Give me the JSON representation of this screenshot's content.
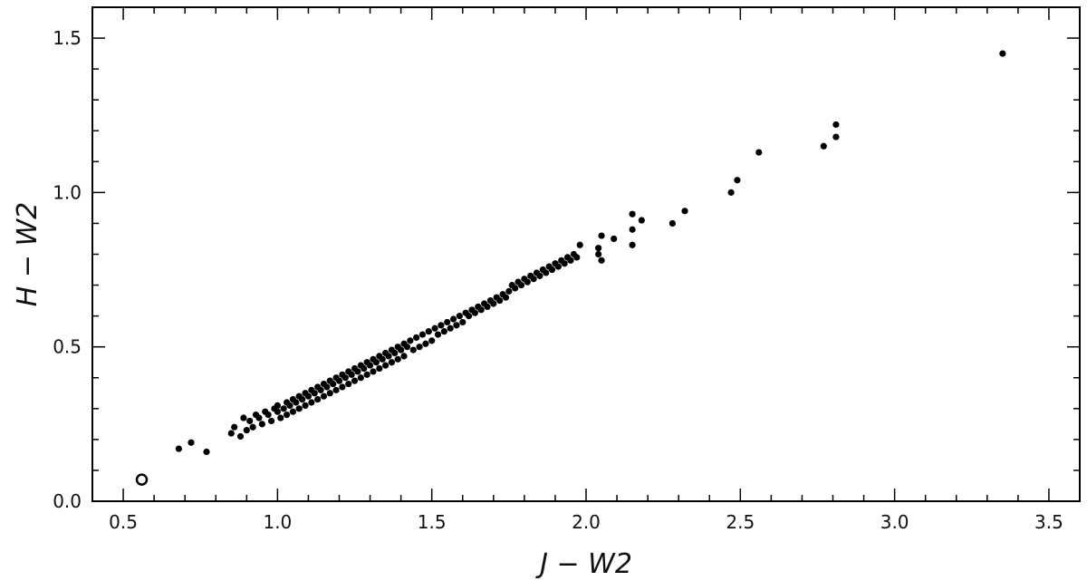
{
  "chart_data": {
    "type": "scatter",
    "xlabel": "J − W2",
    "ylabel": "H − W2",
    "xlim": [
      0.4,
      3.6
    ],
    "ylim": [
      0.0,
      1.6
    ],
    "xticks": [
      "0.5",
      "1.0",
      "1.5",
      "2.0",
      "2.5",
      "3.0",
      "3.5"
    ],
    "yticks": [
      "0.0",
      "0.5",
      "1.0",
      "1.5"
    ],
    "grid": false,
    "highlight_point": {
      "x": 0.56,
      "y": 0.07,
      "marker": "open-circle"
    },
    "series": [
      {
        "marker": "filled-circle",
        "color": "#000000",
        "points": [
          [
            0.68,
            0.17
          ],
          [
            0.72,
            0.19
          ],
          [
            0.77,
            0.16
          ],
          [
            0.85,
            0.22
          ],
          [
            0.86,
            0.24
          ],
          [
            0.88,
            0.21
          ],
          [
            0.89,
            0.27
          ],
          [
            0.9,
            0.23
          ],
          [
            0.91,
            0.26
          ],
          [
            0.92,
            0.24
          ],
          [
            0.93,
            0.28
          ],
          [
            0.94,
            0.27
          ],
          [
            0.95,
            0.25
          ],
          [
            0.96,
            0.29
          ],
          [
            0.97,
            0.28
          ],
          [
            0.98,
            0.26
          ],
          [
            0.99,
            0.3
          ],
          [
            1.0,
            0.29
          ],
          [
            1.0,
            0.31
          ],
          [
            1.01,
            0.27
          ],
          [
            1.02,
            0.3
          ],
          [
            1.03,
            0.32
          ],
          [
            1.03,
            0.28
          ],
          [
            1.04,
            0.31
          ],
          [
            1.05,
            0.33
          ],
          [
            1.05,
            0.29
          ],
          [
            1.06,
            0.32
          ],
          [
            1.07,
            0.34
          ],
          [
            1.07,
            0.3
          ],
          [
            1.08,
            0.33
          ],
          [
            1.09,
            0.35
          ],
          [
            1.09,
            0.31
          ],
          [
            1.1,
            0.34
          ],
          [
            1.11,
            0.36
          ],
          [
            1.11,
            0.32
          ],
          [
            1.12,
            0.35
          ],
          [
            1.13,
            0.37
          ],
          [
            1.13,
            0.33
          ],
          [
            1.14,
            0.36
          ],
          [
            1.15,
            0.38
          ],
          [
            1.15,
            0.34
          ],
          [
            1.16,
            0.37
          ],
          [
            1.17,
            0.39
          ],
          [
            1.17,
            0.35
          ],
          [
            1.18,
            0.38
          ],
          [
            1.19,
            0.4
          ],
          [
            1.19,
            0.36
          ],
          [
            1.2,
            0.39
          ],
          [
            1.21,
            0.41
          ],
          [
            1.21,
            0.37
          ],
          [
            1.22,
            0.4
          ],
          [
            1.23,
            0.42
          ],
          [
            1.23,
            0.38
          ],
          [
            1.24,
            0.41
          ],
          [
            1.25,
            0.43
          ],
          [
            1.25,
            0.39
          ],
          [
            1.26,
            0.42
          ],
          [
            1.27,
            0.44
          ],
          [
            1.27,
            0.4
          ],
          [
            1.28,
            0.43
          ],
          [
            1.29,
            0.45
          ],
          [
            1.29,
            0.41
          ],
          [
            1.3,
            0.44
          ],
          [
            1.31,
            0.46
          ],
          [
            1.31,
            0.42
          ],
          [
            1.32,
            0.45
          ],
          [
            1.33,
            0.47
          ],
          [
            1.33,
            0.43
          ],
          [
            1.34,
            0.46
          ],
          [
            1.35,
            0.48
          ],
          [
            1.35,
            0.44
          ],
          [
            1.36,
            0.47
          ],
          [
            1.37,
            0.49
          ],
          [
            1.37,
            0.45
          ],
          [
            1.38,
            0.48
          ],
          [
            1.39,
            0.5
          ],
          [
            1.39,
            0.46
          ],
          [
            1.4,
            0.49
          ],
          [
            1.41,
            0.51
          ],
          [
            1.41,
            0.47
          ],
          [
            1.42,
            0.5
          ],
          [
            1.43,
            0.52
          ],
          [
            1.44,
            0.49
          ],
          [
            1.45,
            0.53
          ],
          [
            1.46,
            0.5
          ],
          [
            1.47,
            0.54
          ],
          [
            1.48,
            0.51
          ],
          [
            1.49,
            0.55
          ],
          [
            1.5,
            0.52
          ],
          [
            1.51,
            0.56
          ],
          [
            1.52,
            0.54
          ],
          [
            1.53,
            0.57
          ],
          [
            1.54,
            0.55
          ],
          [
            1.55,
            0.58
          ],
          [
            1.56,
            0.56
          ],
          [
            1.57,
            0.59
          ],
          [
            1.58,
            0.57
          ],
          [
            1.59,
            0.6
          ],
          [
            1.6,
            0.58
          ],
          [
            1.61,
            0.61
          ],
          [
            1.62,
            0.6
          ],
          [
            1.63,
            0.62
          ],
          [
            1.64,
            0.61
          ],
          [
            1.65,
            0.63
          ],
          [
            1.66,
            0.62
          ],
          [
            1.67,
            0.64
          ],
          [
            1.68,
            0.63
          ],
          [
            1.69,
            0.65
          ],
          [
            1.7,
            0.64
          ],
          [
            1.71,
            0.66
          ],
          [
            1.72,
            0.65
          ],
          [
            1.73,
            0.67
          ],
          [
            1.74,
            0.66
          ],
          [
            1.75,
            0.68
          ],
          [
            1.76,
            0.7
          ],
          [
            1.77,
            0.69
          ],
          [
            1.78,
            0.71
          ],
          [
            1.79,
            0.7
          ],
          [
            1.8,
            0.72
          ],
          [
            1.81,
            0.71
          ],
          [
            1.82,
            0.73
          ],
          [
            1.83,
            0.72
          ],
          [
            1.84,
            0.74
          ],
          [
            1.85,
            0.73
          ],
          [
            1.86,
            0.75
          ],
          [
            1.87,
            0.74
          ],
          [
            1.88,
            0.76
          ],
          [
            1.89,
            0.75
          ],
          [
            1.9,
            0.77
          ],
          [
            1.91,
            0.76
          ],
          [
            1.92,
            0.78
          ],
          [
            1.93,
            0.77
          ],
          [
            1.94,
            0.79
          ],
          [
            1.95,
            0.78
          ],
          [
            1.96,
            0.8
          ],
          [
            1.97,
            0.79
          ],
          [
            1.98,
            0.83
          ],
          [
            2.04,
            0.8
          ],
          [
            2.04,
            0.82
          ],
          [
            2.05,
            0.78
          ],
          [
            2.05,
            0.86
          ],
          [
            2.09,
            0.85
          ],
          [
            2.15,
            0.83
          ],
          [
            2.15,
            0.88
          ],
          [
            2.15,
            0.93
          ],
          [
            2.18,
            0.91
          ],
          [
            2.28,
            0.9
          ],
          [
            2.32,
            0.94
          ],
          [
            2.47,
            1.0
          ],
          [
            2.49,
            1.04
          ],
          [
            2.56,
            1.13
          ],
          [
            2.77,
            1.15
          ],
          [
            2.81,
            1.18
          ],
          [
            2.81,
            1.22
          ],
          [
            3.35,
            1.45
          ]
        ]
      }
    ]
  }
}
